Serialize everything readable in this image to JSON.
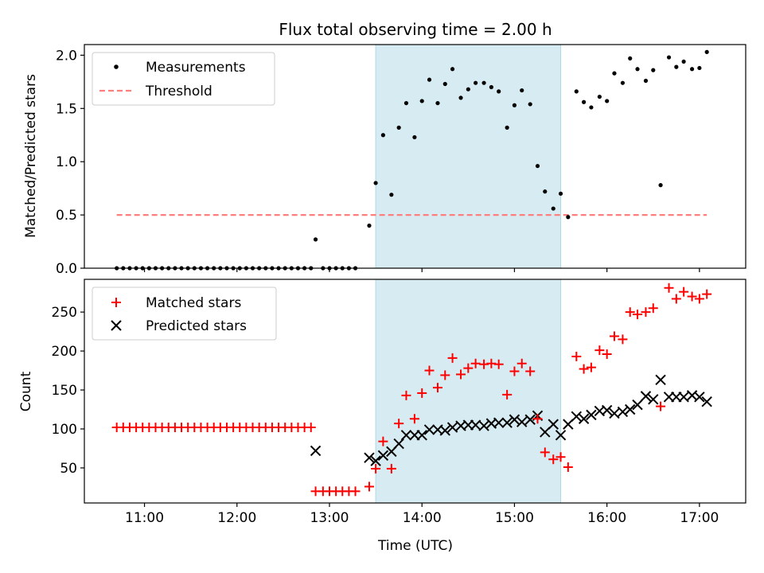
{
  "chart_data": [
    {
      "type": "scatter",
      "title": "Flux total observing time = 2.00 h",
      "xlabel": "",
      "ylabel": "Matched/Predicted stars",
      "ylim": [
        0,
        2.1
      ],
      "yticks": [
        "0.0",
        "0.5",
        "1.0",
        "1.5",
        "2.0"
      ],
      "xticks": [
        "11:00",
        "12:00",
        "13:00",
        "14:00",
        "15:00",
        "16:00",
        "17:00"
      ],
      "xlim_hours": [
        10.35,
        17.5
      ],
      "shaded_span_hours": [
        13.5,
        15.5
      ],
      "shaded_color": "#add8e6",
      "legend_position": "upper-left",
      "legend": [
        "Measurements",
        "Threshold"
      ],
      "series": [
        {
          "name": "Measurements",
          "marker": "dot",
          "color": "#000000",
          "x_hours": [
            10.7,
            10.77,
            10.84,
            10.91,
            10.98,
            11.05,
            11.12,
            11.19,
            11.26,
            11.33,
            11.4,
            11.47,
            11.54,
            11.61,
            11.68,
            11.75,
            11.82,
            11.89,
            11.96,
            12.03,
            12.1,
            12.17,
            12.24,
            12.31,
            12.38,
            12.45,
            12.52,
            12.59,
            12.66,
            12.73,
            12.8,
            12.85,
            12.93,
            13.0,
            13.07,
            13.14,
            13.21,
            13.28,
            13.43,
            13.5,
            13.58,
            13.67,
            13.75,
            13.83,
            13.92,
            14.0,
            14.08,
            14.17,
            14.25,
            14.33,
            14.42,
            14.5,
            14.58,
            14.67,
            14.75,
            14.83,
            14.92,
            15.0,
            15.08,
            15.17,
            15.25,
            15.33,
            15.42,
            15.5,
            15.58,
            15.67,
            15.75,
            15.83,
            15.92,
            16.0,
            16.08,
            16.17,
            16.25,
            16.33,
            16.42,
            16.5,
            16.58,
            16.67,
            16.75,
            16.83,
            16.92,
            17.0,
            17.08
          ],
          "y": [
            0,
            0,
            0,
            0,
            0,
            0,
            0,
            0,
            0,
            0,
            0,
            0,
            0,
            0,
            0,
            0,
            0,
            0,
            0,
            0,
            0,
            0,
            0,
            0,
            0,
            0,
            0,
            0,
            0,
            0,
            0,
            0.27,
            0,
            0,
            0,
            0,
            0,
            0,
            0.4,
            0.8,
            1.25,
            0.69,
            1.32,
            1.55,
            1.23,
            1.57,
            1.77,
            1.55,
            1.73,
            1.87,
            1.6,
            1.68,
            1.74,
            1.74,
            1.7,
            1.66,
            1.32,
            1.53,
            1.67,
            1.54,
            0.96,
            0.72,
            0.56,
            0.7,
            0.48,
            1.66,
            1.56,
            1.51,
            1.61,
            1.57,
            1.83,
            1.74,
            1.97,
            1.87,
            1.76,
            1.86,
            0.78,
            1.98,
            1.89,
            1.94,
            1.87,
            1.88,
            2.03
          ]
        },
        {
          "name": "Threshold",
          "style": "dashed",
          "color": "#ff7f7f",
          "x_hours": [
            10.7,
            17.08
          ],
          "y": [
            0.5,
            0.5
          ]
        }
      ]
    },
    {
      "type": "scatter",
      "title": "",
      "xlabel": "Time (UTC)",
      "ylabel": "Count",
      "ylim": [
        5,
        292
      ],
      "yticks": [
        "50",
        "100",
        "150",
        "200",
        "250"
      ],
      "xticks": [
        "11:00",
        "12:00",
        "13:00",
        "14:00",
        "15:00",
        "16:00",
        "17:00"
      ],
      "xlim_hours": [
        10.35,
        17.5
      ],
      "shaded_span_hours": [
        13.5,
        15.5
      ],
      "shaded_color": "#add8e6",
      "legend_position": "upper-left",
      "legend": [
        "Matched stars",
        "Predicted stars"
      ],
      "series": [
        {
          "name": "Matched stars",
          "marker": "plus",
          "color": "#ff0000",
          "x_hours": [
            10.7,
            10.77,
            10.84,
            10.91,
            10.98,
            11.05,
            11.12,
            11.19,
            11.26,
            11.33,
            11.4,
            11.47,
            11.54,
            11.61,
            11.68,
            11.75,
            11.82,
            11.89,
            11.96,
            12.03,
            12.1,
            12.17,
            12.24,
            12.31,
            12.38,
            12.45,
            12.52,
            12.59,
            12.66,
            12.73,
            12.8,
            12.85,
            12.93,
            13.0,
            13.07,
            13.14,
            13.21,
            13.28,
            13.43,
            13.5,
            13.58,
            13.67,
            13.75,
            13.83,
            13.92,
            14.0,
            14.08,
            14.17,
            14.25,
            14.33,
            14.42,
            14.5,
            14.58,
            14.67,
            14.75,
            14.83,
            14.92,
            15.0,
            15.08,
            15.17,
            15.25,
            15.33,
            15.42,
            15.5,
            15.58,
            15.67,
            15.75,
            15.83,
            15.92,
            16.0,
            16.08,
            16.17,
            16.25,
            16.33,
            16.42,
            16.5,
            16.58,
            16.67,
            16.75,
            16.83,
            16.92,
            17.0,
            17.08
          ],
          "y": [
            102,
            102,
            102,
            102,
            102,
            102,
            102,
            102,
            102,
            102,
            102,
            102,
            102,
            102,
            102,
            102,
            102,
            102,
            102,
            102,
            102,
            102,
            102,
            102,
            102,
            102,
            102,
            102,
            102,
            102,
            102,
            20,
            20,
            20,
            20,
            20,
            20,
            20,
            26,
            49,
            84,
            49,
            107,
            143,
            113,
            146,
            175,
            153,
            169,
            191,
            170,
            178,
            184,
            183,
            184,
            183,
            144,
            174,
            184,
            174,
            113,
            70,
            61,
            64,
            51,
            193,
            177,
            179,
            201,
            196,
            219,
            215,
            250,
            247,
            250,
            255,
            129,
            281,
            267,
            276,
            270,
            267,
            273
          ]
        },
        {
          "name": "Predicted stars",
          "marker": "x",
          "color": "#000000",
          "x_hours": [
            12.85,
            13.43,
            13.5,
            13.58,
            13.67,
            13.75,
            13.83,
            13.92,
            14.0,
            14.08,
            14.17,
            14.25,
            14.33,
            14.42,
            14.5,
            14.58,
            14.67,
            14.75,
            14.83,
            14.92,
            15.0,
            15.08,
            15.17,
            15.25,
            15.33,
            15.42,
            15.5,
            15.58,
            15.67,
            15.75,
            15.83,
            15.92,
            16.0,
            16.08,
            16.17,
            16.25,
            16.33,
            16.42,
            16.5,
            16.58,
            16.67,
            16.75,
            16.83,
            16.92,
            17.0,
            17.08
          ],
          "y": [
            72,
            63,
            59,
            66,
            71,
            81,
            92,
            92,
            92,
            99,
            99,
            98,
            102,
            104,
            105,
            105,
            104,
            107,
            108,
            108,
            112,
            109,
            112,
            117,
            96,
            106,
            92,
            106,
            116,
            113,
            118,
            123,
            124,
            120,
            122,
            125,
            131,
            142,
            138,
            163,
            141,
            141,
            141,
            143,
            141,
            135
          ]
        }
      ]
    }
  ]
}
